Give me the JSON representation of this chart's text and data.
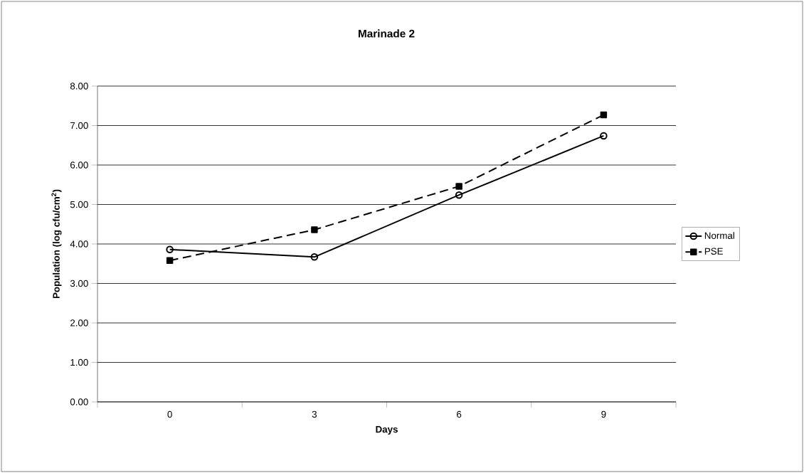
{
  "chart_data": {
    "type": "line",
    "title": "Marinade 2",
    "xlabel": "Days",
    "ylabel": "Population (log cfu/cm$^{2}$)",
    "categories": [
      "0",
      "3",
      "6",
      "9"
    ],
    "series": [
      {
        "name": "Normal",
        "color": "#000000",
        "marker": "circle",
        "line_style": "solid",
        "values": [
          3.86,
          3.67,
          5.24,
          6.74
        ]
      },
      {
        "name": "PSE",
        "color": "#000000",
        "marker": "square",
        "line_style": "dashed",
        "values": [
          3.58,
          4.36,
          5.46,
          7.27
        ]
      }
    ],
    "ylim": [
      0,
      8
    ],
    "yticks": [
      {
        "value": 0,
        "label": "0.00"
      },
      {
        "value": 1,
        "label": "1.00"
      },
      {
        "value": 2,
        "label": "2.00"
      },
      {
        "value": 3,
        "label": "3.00"
      },
      {
        "value": 4,
        "label": "4.00"
      },
      {
        "value": 5,
        "label": "5.00"
      },
      {
        "value": 6,
        "label": "6.00"
      },
      {
        "value": 7,
        "label": "7.00"
      },
      {
        "value": 8,
        "label": "8.00"
      }
    ],
    "grid": "y",
    "legend": "right"
  }
}
